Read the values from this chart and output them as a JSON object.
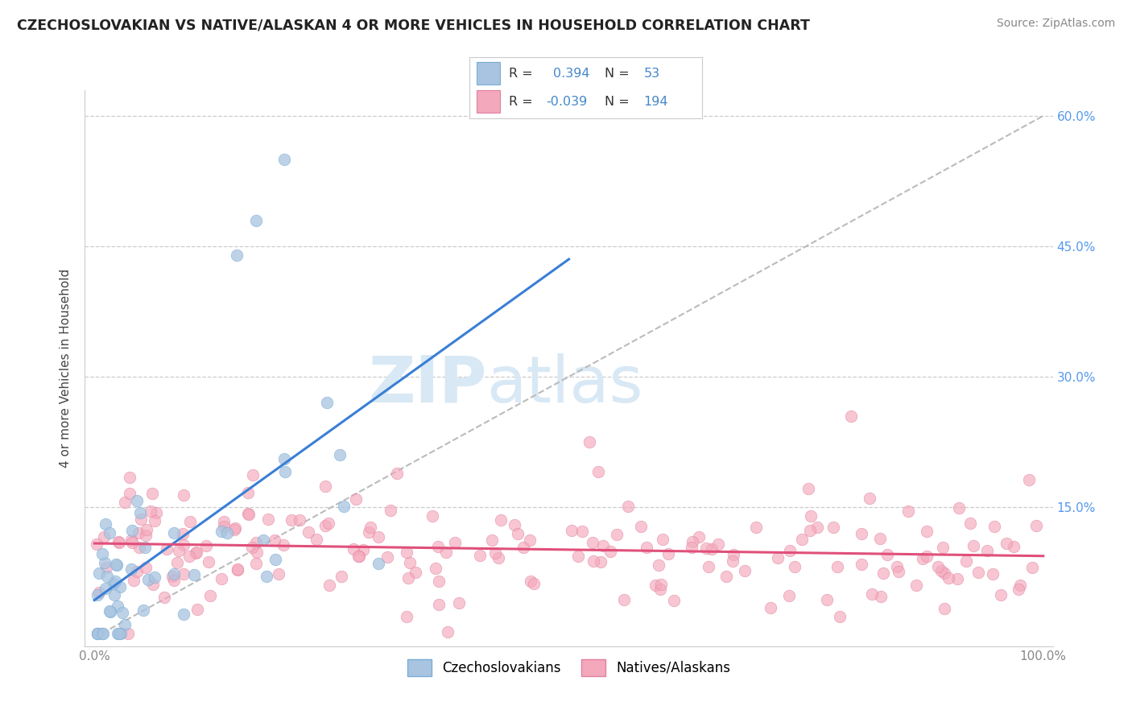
{
  "title": "CZECHOSLOVAKIAN VS NATIVE/ALASKAN 4 OR MORE VEHICLES IN HOUSEHOLD CORRELATION CHART",
  "source": "Source: ZipAtlas.com",
  "ylabel": "4 or more Vehicles in Household",
  "legend_R1": "0.394",
  "legend_N1": "53",
  "legend_R2": "-0.039",
  "legend_N2": "194",
  "blue_color": "#a8c4e0",
  "blue_edge": "#7aadd4",
  "pink_color": "#f4a8bb",
  "pink_edge": "#e080a0",
  "blue_line_color": "#3a7fd5",
  "pink_line_color": "#e0507a",
  "diag_color": "#bbbbbb",
  "grid_color": "#cccccc",
  "y_tick_color": "#5599ee",
  "x_tick_color": "#888888",
  "watermark_color": "#d8e8f5",
  "title_color": "#222222",
  "source_color": "#888888",
  "legend_text_color": "#333333",
  "legend_val_color": "#4488cc"
}
